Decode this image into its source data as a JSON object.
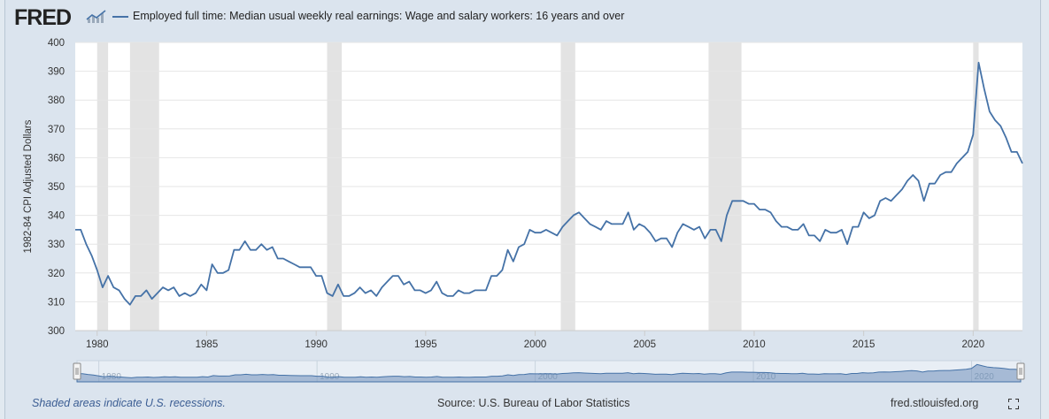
{
  "header": {
    "logo_text": "FRED",
    "logo_icon": "fred-line-chart-icon",
    "legend_label": "Employed full time: Median usual weekly real earnings: Wage and salary workers: 16 years and over",
    "series_color": "#4572a7"
  },
  "chart_data": {
    "type": "line",
    "title": "Employed full time: Median usual weekly real earnings: Wage and salary workers: 16 years and over",
    "xlabel": "",
    "ylabel": "1982-84 CPI Adjusted Dollars",
    "xlim": [
      1979.0,
      2022.25
    ],
    "ylim": [
      300,
      400
    ],
    "y_ticks": [
      300,
      310,
      320,
      330,
      340,
      350,
      360,
      370,
      380,
      390,
      400
    ],
    "x_ticks": [
      1980,
      1985,
      1990,
      1995,
      2000,
      2005,
      2010,
      2015,
      2020
    ],
    "grid": true,
    "recessions": [
      [
        1980.0,
        1980.5
      ],
      [
        1981.5,
        1982.83
      ],
      [
        1990.5,
        1991.17
      ],
      [
        2001.17,
        2001.83
      ],
      [
        2007.92,
        2009.42
      ],
      [
        2020.0,
        2020.25
      ]
    ],
    "series": [
      {
        "name": "Employed full time: Median usual weekly real earnings: Wage and salary workers: 16 years and over",
        "x": [
          1979.0,
          1979.25,
          1979.5,
          1979.75,
          1980.0,
          1980.25,
          1980.5,
          1980.75,
          1981.0,
          1981.25,
          1981.5,
          1981.75,
          1982.0,
          1982.25,
          1982.5,
          1982.75,
          1983.0,
          1983.25,
          1983.5,
          1983.75,
          1984.0,
          1984.25,
          1984.5,
          1984.75,
          1985.0,
          1985.25,
          1985.5,
          1985.75,
          1986.0,
          1986.25,
          1986.5,
          1986.75,
          1987.0,
          1987.25,
          1987.5,
          1987.75,
          1988.0,
          1988.25,
          1988.5,
          1988.75,
          1989.0,
          1989.25,
          1989.5,
          1989.75,
          1990.0,
          1990.25,
          1990.5,
          1990.75,
          1991.0,
          1991.25,
          1991.5,
          1991.75,
          1992.0,
          1992.25,
          1992.5,
          1992.75,
          1993.0,
          1993.25,
          1993.5,
          1993.75,
          1994.0,
          1994.25,
          1994.5,
          1994.75,
          1995.0,
          1995.25,
          1995.5,
          1995.75,
          1996.0,
          1996.25,
          1996.5,
          1996.75,
          1997.0,
          1997.25,
          1997.5,
          1997.75,
          1998.0,
          1998.25,
          1998.5,
          1998.75,
          1999.0,
          1999.25,
          1999.5,
          1999.75,
          2000.0,
          2000.25,
          2000.5,
          2000.75,
          2001.0,
          2001.25,
          2001.5,
          2001.75,
          2002.0,
          2002.25,
          2002.5,
          2002.75,
          2003.0,
          2003.25,
          2003.5,
          2003.75,
          2004.0,
          2004.25,
          2004.5,
          2004.75,
          2005.0,
          2005.25,
          2005.5,
          2005.75,
          2006.0,
          2006.25,
          2006.5,
          2006.75,
          2007.0,
          2007.25,
          2007.5,
          2007.75,
          2008.0,
          2008.25,
          2008.5,
          2008.75,
          2009.0,
          2009.25,
          2009.5,
          2009.75,
          2010.0,
          2010.25,
          2010.5,
          2010.75,
          2011.0,
          2011.25,
          2011.5,
          2011.75,
          2012.0,
          2012.25,
          2012.5,
          2012.75,
          2013.0,
          2013.25,
          2013.5,
          2013.75,
          2014.0,
          2014.25,
          2014.5,
          2014.75,
          2015.0,
          2015.25,
          2015.5,
          2015.75,
          2016.0,
          2016.25,
          2016.5,
          2016.75,
          2017.0,
          2017.25,
          2017.5,
          2017.75,
          2018.0,
          2018.25,
          2018.5,
          2018.75,
          2019.0,
          2019.25,
          2019.5,
          2019.75,
          2020.0,
          2020.25,
          2020.5,
          2020.75,
          2021.0,
          2021.25,
          2021.5,
          2021.75,
          2022.0,
          2022.25
        ],
        "values": [
          335,
          335,
          330,
          326,
          321,
          315,
          319,
          315,
          314,
          311,
          309,
          312,
          312,
          314,
          311,
          313,
          315,
          314,
          315,
          312,
          313,
          312,
          313,
          316,
          314,
          323,
          320,
          320,
          321,
          328,
          328,
          331,
          328,
          328,
          330,
          328,
          329,
          325,
          325,
          324,
          323,
          322,
          322,
          322,
          319,
          319,
          313,
          312,
          316,
          312,
          312,
          313,
          315,
          313,
          314,
          312,
          315,
          317,
          319,
          319,
          316,
          317,
          314,
          314,
          313,
          314,
          317,
          313,
          312,
          312,
          314,
          313,
          313,
          314,
          314,
          314,
          319,
          319,
          321,
          328,
          324,
          329,
          330,
          335,
          334,
          334,
          335,
          334,
          333,
          336,
          338,
          340,
          341,
          339,
          337,
          336,
          335,
          338,
          337,
          337,
          337,
          341,
          335,
          337,
          336,
          334,
          331,
          332,
          332,
          329,
          334,
          337,
          336,
          335,
          336,
          332,
          335,
          335,
          331,
          340,
          345,
          345,
          345,
          344,
          344,
          342,
          342,
          341,
          338,
          336,
          336,
          335,
          335,
          337,
          333,
          333,
          331,
          335,
          334,
          334,
          335,
          330,
          336,
          336,
          341,
          339,
          340,
          345,
          346,
          345,
          347,
          349,
          352,
          354,
          352,
          345,
          351,
          351,
          354,
          355,
          355,
          358,
          360,
          362,
          368,
          393,
          384,
          376,
          373,
          371,
          367,
          362,
          362,
          358
        ]
      }
    ]
  },
  "navigator": {
    "tick_labels": [
      "1980",
      "1990",
      "2000",
      "2010",
      "2020"
    ]
  },
  "footer": {
    "recession_note": "Shaded areas indicate U.S. recessions.",
    "source": "Source: U.S. Bureau of Labor Statistics",
    "site": "fred.stlouisfed.org",
    "fullscreen_icon": "fullscreen-icon"
  }
}
